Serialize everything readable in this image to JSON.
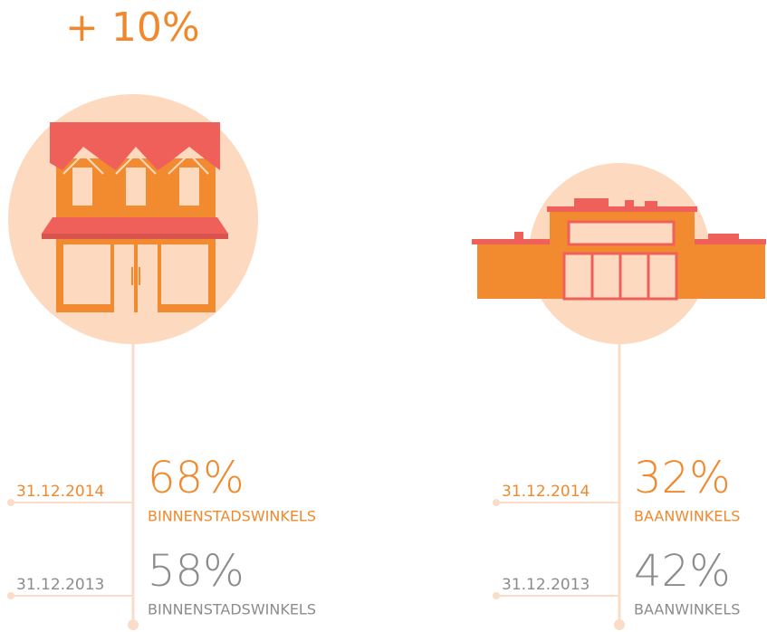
{
  "headline": "+ 10%",
  "panels": [
    {
      "entries": [
        {
          "date": "31.12.2014",
          "percent": "68%",
          "label": "BINNENSTADSWINKELS"
        },
        {
          "date": "31.12.2013",
          "percent": "58%",
          "label": "BINNENSTADSWINKELS"
        }
      ]
    },
    {
      "entries": [
        {
          "date": "31.12.2014",
          "percent": "32%",
          "label": "BAANWINKELS"
        },
        {
          "date": "31.12.2013",
          "percent": "42%",
          "label": "BAANWINKELS"
        }
      ]
    }
  ]
}
